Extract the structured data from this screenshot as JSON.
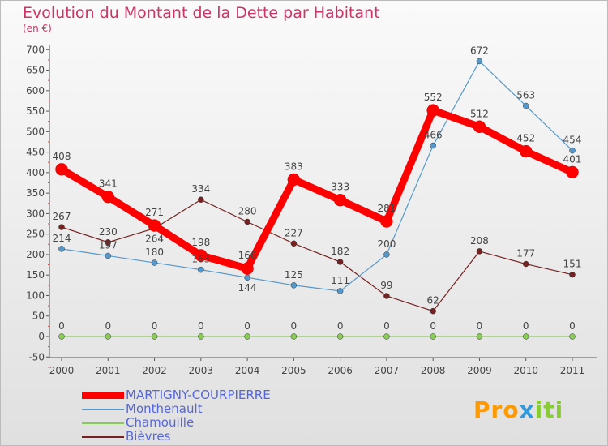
{
  "chart_data": {
    "type": "line",
    "title": "Evolution du Montant de la Dette par Habitant",
    "subtitle": "(en €)",
    "xlabel": "",
    "ylabel": "",
    "ylim": [
      -50,
      700
    ],
    "yticks": [
      -50,
      0,
      50,
      100,
      150,
      200,
      250,
      300,
      350,
      400,
      450,
      500,
      550,
      600,
      650,
      700
    ],
    "categories": [
      "2000",
      "2001",
      "2002",
      "2003",
      "2004",
      "2005",
      "2006",
      "2007",
      "2008",
      "2009",
      "2010",
      "2011"
    ],
    "series": [
      {
        "name": "MARTIGNY-COURPIERRE",
        "color": "#ff0000",
        "values": [
          408,
          341,
          271,
          198,
          166,
          383,
          333,
          281,
          552,
          512,
          452,
          401
        ]
      },
      {
        "name": "Monthenault",
        "color": "#5599cc",
        "values": [
          214,
          197,
          180,
          163,
          144,
          125,
          111,
          200,
          466,
          672,
          563,
          454
        ]
      },
      {
        "name": "Chamouille",
        "color": "#88cc55",
        "values": [
          0,
          0,
          0,
          0,
          0,
          0,
          0,
          0,
          0,
          0,
          0,
          0
        ]
      },
      {
        "name": "Bièvres",
        "color": "#772222",
        "values": [
          267,
          230,
          264,
          334,
          280,
          227,
          182,
          99,
          62,
          208,
          177,
          151
        ]
      }
    ],
    "legend": "bottom-left",
    "grid": false
  },
  "logo": "Proxiti"
}
